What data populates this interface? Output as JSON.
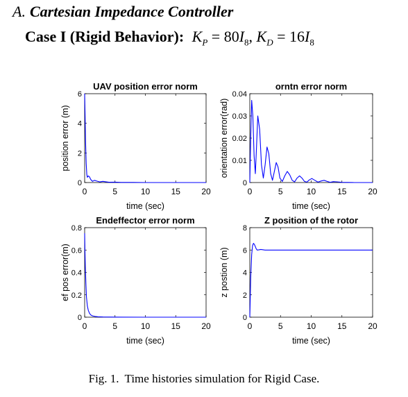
{
  "section": {
    "number": "A.",
    "title": "Cartesian Impedance Controller"
  },
  "case_heading": {
    "label": "Case I (Rigid Behavior):",
    "math": "K_P = 80I_8, K_D = 16I_8"
  },
  "caption": {
    "label": "Fig. 1.",
    "text": "Time histories simulation for Rigid Case."
  },
  "chart_data": [
    {
      "type": "line",
      "title": "UAV position error norm",
      "xlabel": "time (sec)",
      "ylabel": "position error (m)",
      "xlim": [
        0,
        20
      ],
      "ylim": [
        0,
        6
      ],
      "xticks": [
        "0",
        "5",
        "10",
        "15",
        "20"
      ],
      "yticks": [
        "0",
        "2",
        "4",
        "6"
      ],
      "grid": false,
      "line_color": "#0000ff",
      "x": [
        0,
        0.08,
        0.15,
        0.25,
        0.35,
        0.45,
        0.6,
        0.8,
        1.0,
        1.3,
        1.6,
        2.0,
        2.5,
        3.0,
        3.5,
        4.0,
        5.0,
        6.0,
        8.0,
        10.0,
        15.0,
        20.0
      ],
      "y": [
        6.0,
        4.4,
        2.8,
        1.3,
        0.55,
        0.35,
        0.45,
        0.38,
        0.2,
        0.08,
        0.15,
        0.1,
        0.04,
        0.08,
        0.05,
        0.02,
        0.03,
        0.01,
        0.01,
        0.0,
        0.0,
        0.0
      ]
    },
    {
      "type": "line",
      "title": "orntn error norm",
      "xlabel": "time (sec)",
      "ylabel": "orientation error(rad)",
      "xlim": [
        0,
        20
      ],
      "ylim": [
        0,
        0.04
      ],
      "xticks": [
        "0",
        "5",
        "10",
        "15",
        "20"
      ],
      "yticks": [
        "0",
        "0.01",
        "0.02",
        "0.03",
        "0.04"
      ],
      "grid": false,
      "line_color": "#0000ff",
      "x": [
        0,
        0.15,
        0.3,
        0.5,
        0.7,
        0.9,
        1.1,
        1.3,
        1.6,
        1.9,
        2.2,
        2.5,
        2.8,
        3.1,
        3.4,
        3.7,
        4.0,
        4.3,
        4.6,
        4.9,
        5.3,
        5.7,
        6.1,
        6.5,
        6.9,
        7.3,
        7.7,
        8.1,
        8.5,
        8.9,
        9.3,
        9.7,
        10.1,
        10.6,
        11.1,
        11.6,
        12.1,
        12.6,
        13.1,
        13.6,
        14.2,
        15.0,
        16.0,
        17.0,
        18.0,
        19.0,
        20.0
      ],
      "y": [
        0.0,
        0.02,
        0.037,
        0.03,
        0.012,
        0.004,
        0.016,
        0.03,
        0.024,
        0.008,
        0.002,
        0.008,
        0.016,
        0.013,
        0.004,
        0.001,
        0.005,
        0.009,
        0.007,
        0.002,
        0.0005,
        0.003,
        0.005,
        0.0035,
        0.001,
        0.0003,
        0.002,
        0.003,
        0.002,
        0.0005,
        0.0002,
        0.0012,
        0.0018,
        0.001,
        0.0002,
        0.0007,
        0.001,
        0.0005,
        0.0001,
        0.0004,
        0.0003,
        0.0001,
        5e-05,
        0.0,
        0.0,
        0.0,
        0.0
      ]
    },
    {
      "type": "line",
      "title": "Endeffector error norm",
      "xlabel": "time (sec)",
      "ylabel": "ef pos error(m)",
      "xlim": [
        0,
        20
      ],
      "ylim": [
        0,
        0.8
      ],
      "xticks": [
        "0",
        "5",
        "10",
        "15",
        "20"
      ],
      "yticks": [
        "0",
        "0.2",
        "0.4",
        "0.6",
        "0.8"
      ],
      "grid": false,
      "line_color": "#0000ff",
      "x": [
        0,
        0.05,
        0.12,
        0.2,
        0.3,
        0.45,
        0.6,
        0.8,
        1.0,
        1.3,
        1.7,
        2.2,
        3.0,
        4.0,
        6.0,
        10.0,
        20.0
      ],
      "y": [
        0.75,
        0.6,
        0.45,
        0.3,
        0.18,
        0.1,
        0.06,
        0.035,
        0.02,
        0.012,
        0.007,
        0.004,
        0.002,
        0.001,
        0.0005,
        0.0,
        0.0
      ]
    },
    {
      "type": "line",
      "title": "Z position of the rotor",
      "xlabel": "time (sec)",
      "ylabel": "z postion (m)",
      "xlim": [
        0,
        20
      ],
      "ylim": [
        0,
        8
      ],
      "xticks": [
        "0",
        "5",
        "10",
        "15",
        "20"
      ],
      "yticks": [
        "0",
        "2",
        "4",
        "6",
        "8"
      ],
      "grid": false,
      "line_color": "#0000ff",
      "x": [
        0,
        0.05,
        0.15,
        0.3,
        0.45,
        0.6,
        0.75,
        0.9,
        1.05,
        1.2,
        1.5,
        1.8,
        2.1,
        2.5,
        3.0,
        4.0,
        6.0,
        10.0,
        15.0,
        20.0
      ],
      "y": [
        0.0,
        1.0,
        3.5,
        5.6,
        6.4,
        6.6,
        6.5,
        6.3,
        6.1,
        6.0,
        6.02,
        6.05,
        6.03,
        6.0,
        6.0,
        6.0,
        6.0,
        6.0,
        6.0,
        6.0
      ]
    }
  ]
}
